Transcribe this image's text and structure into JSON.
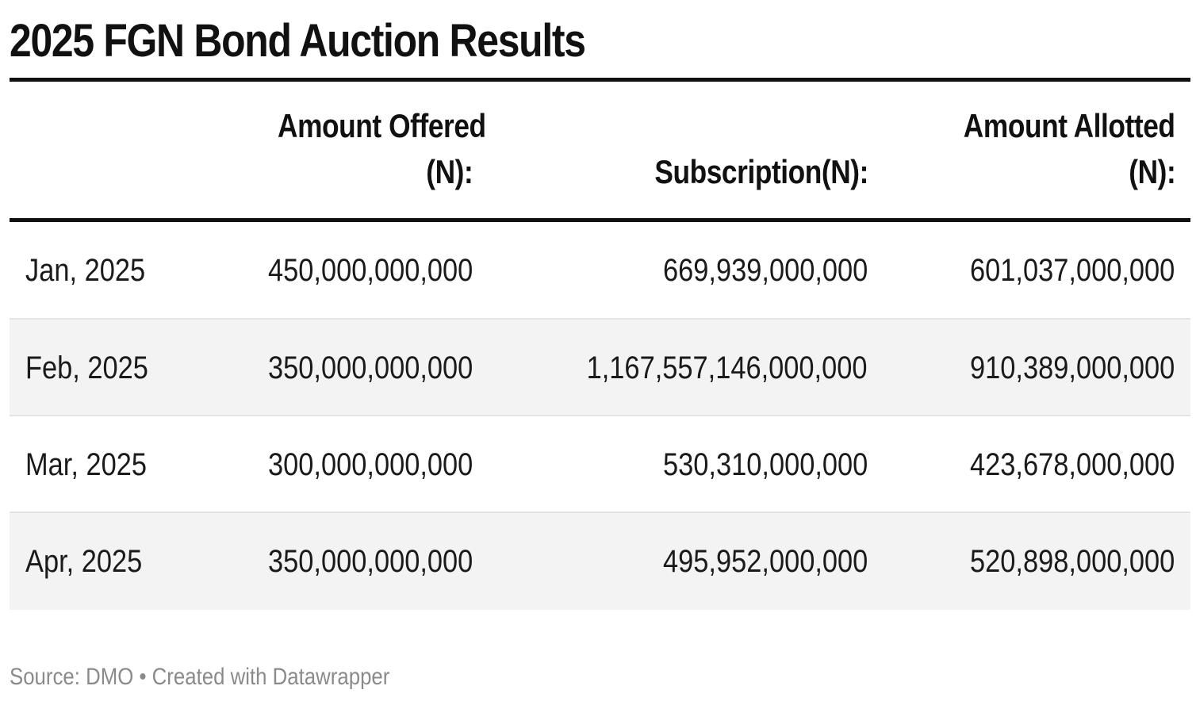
{
  "chart_data": {
    "type": "table",
    "title": "2025 FGN Bond Auction Results",
    "columns": [
      [
        "Amount Offered",
        "(N):"
      ],
      [
        "Subscription(N):"
      ],
      [
        "Amount Allotted",
        "(N):"
      ]
    ],
    "rows": [
      {
        "label": "Jan, 2025",
        "offered": "450,000,000,000",
        "subscription": "669,939,000,000",
        "allotted": "601,037,000,000"
      },
      {
        "label": "Feb, 2025",
        "offered": "350,000,000,000",
        "subscription": "1,167,557,146,000,000",
        "allotted": "910,389,000,000"
      },
      {
        "label": "Mar, 2025",
        "offered": "300,000,000,000",
        "subscription": "530,310,000,000",
        "allotted": "423,678,000,000"
      },
      {
        "label": "Apr, 2025",
        "offered": "350,000,000,000",
        "subscription": "495,952,000,000",
        "allotted": "520,898,000,000"
      }
    ],
    "footer": "Source: DMO • Created with Datawrapper"
  },
  "colors": {
    "text": "#1a1a1a",
    "rule": "#111111",
    "shaded_row": "#f2f3f2",
    "footer": "#8a8a8a"
  }
}
